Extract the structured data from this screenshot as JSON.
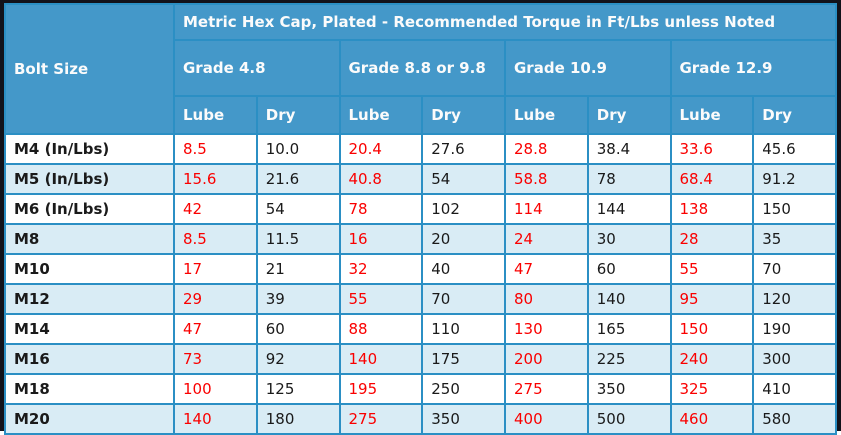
{
  "colors": {
    "frame": "#12121a",
    "border_blue": "#2b8fc4",
    "header_bg": "#4498c9",
    "header_text": "#fbfbfb",
    "stripe": "#d9ecf5",
    "lube_text": "#fa0000",
    "dry_text": "#1a1a1a"
  },
  "chart_data": {
    "type": "table",
    "title": "Metric Hex Cap, Plated - Recommended Torque in Ft/Lbs unless Noted",
    "corner_header": "Bolt Size",
    "grade_groups": [
      "Grade 4.8",
      "Grade 8.8 or 9.8",
      "Grade 10.9",
      "Grade 12.9"
    ],
    "subheaders": [
      "Lube",
      "Dry"
    ],
    "value_color_note": "Lube columns red, Dry columns black",
    "rows": [
      {
        "size": "M4 (In/Lbs)",
        "values": [
          "8.5",
          "10.0",
          "20.4",
          "27.6",
          "28.8",
          "38.4",
          "33.6",
          "45.6"
        ]
      },
      {
        "size": "M5 (In/Lbs)",
        "values": [
          "15.6",
          "21.6",
          "40.8",
          "54",
          "58.8",
          "78",
          "68.4",
          "91.2"
        ]
      },
      {
        "size": "M6 (In/Lbs)",
        "values": [
          "42",
          "54",
          "78",
          "102",
          "114",
          "144",
          "138",
          "150"
        ]
      },
      {
        "size": "M8",
        "values": [
          "8.5",
          "11.5",
          "16",
          "20",
          "24",
          "30",
          "28",
          "35"
        ]
      },
      {
        "size": "M10",
        "values": [
          "17",
          "21",
          "32",
          "40",
          "47",
          "60",
          "55",
          "70"
        ]
      },
      {
        "size": "M12",
        "values": [
          "29",
          "39",
          "55",
          "70",
          "80",
          "140",
          "95",
          "120"
        ]
      },
      {
        "size": "M14",
        "values": [
          "47",
          "60",
          "88",
          "110",
          "130",
          "165",
          "150",
          "190"
        ]
      },
      {
        "size": "M16",
        "values": [
          "73",
          "92",
          "140",
          "175",
          "200",
          "225",
          "240",
          "300"
        ]
      },
      {
        "size": "M18",
        "values": [
          "100",
          "125",
          "195",
          "250",
          "275",
          "350",
          "325",
          "410"
        ]
      },
      {
        "size": "M20",
        "values": [
          "140",
          "180",
          "275",
          "350",
          "400",
          "500",
          "460",
          "580"
        ]
      }
    ]
  }
}
